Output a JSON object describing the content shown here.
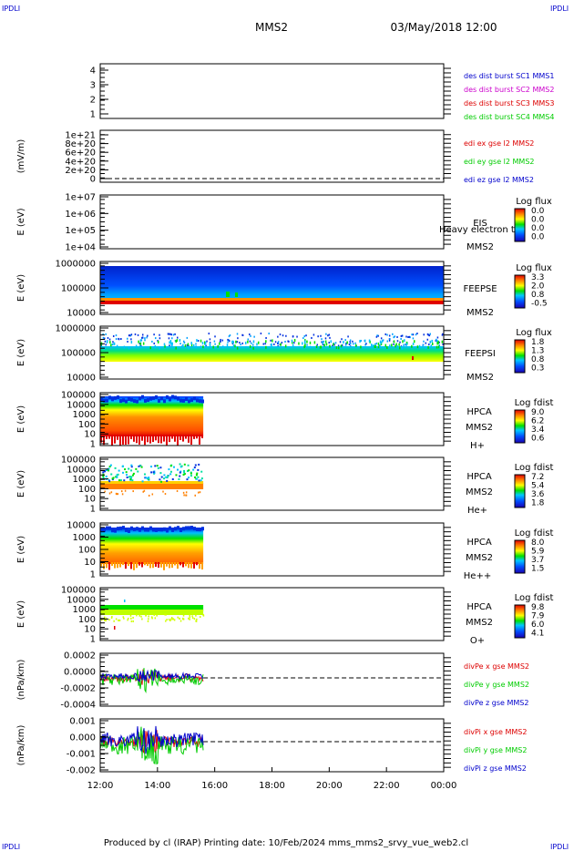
{
  "corner_label": "IPDLI",
  "header": {
    "spacecraft": "MMS2",
    "datetime": "03/May/2018 12:00"
  },
  "footer": "Produced by cl (IRAP)   Printing date: 10/Feb/2024   mms_mms2_srvy_vue_web2.cl",
  "colors": {
    "blue": "#0000cc",
    "magenta": "#cc00cc",
    "red": "#dd0000",
    "green": "#00cc00",
    "bg_blue": "#0033dd"
  },
  "chart_data": [
    {
      "type": "heatmap",
      "id": "p1",
      "ylabel": "",
      "yticks": [
        "4",
        "3",
        "2",
        "1"
      ],
      "legend": [
        {
          "text": "des dist burst SC1 MMS1",
          "color": "#0000cc"
        },
        {
          "text": "des dist burst SC2 MMS2",
          "color": "#cc00cc"
        },
        {
          "text": "des dist burst SC3 MMS3",
          "color": "#dd0000"
        },
        {
          "text": "des dist burst SC4 MMS4",
          "color": "#00cc00"
        }
      ]
    },
    {
      "type": "line",
      "id": "p2",
      "ylabel": "(mV/m)",
      "yticks": [
        "1e+21",
        "8e+20",
        "6e+20",
        "4e+20",
        "2e+20",
        "0"
      ],
      "legend": [
        {
          "text": "edi ex gse l2 MMS2",
          "color": "#dd0000"
        },
        {
          "text": "edi ey gse l2 MMS2",
          "color": "#00cc00"
        },
        {
          "text": "edi ez gse l2 MMS2",
          "color": "#0000cc"
        }
      ]
    },
    {
      "type": "heatmap",
      "id": "p3",
      "ylabel": "E (eV)",
      "yticks": [
        "1e+07",
        "1e+06",
        "1e+05",
        "1e+04"
      ],
      "instrument": [
        "EIS",
        "MMS2"
      ],
      "overlay_text": "Heavy electron to",
      "cbar_title": "Log flux",
      "cbar_ticks": [
        "0.0",
        "0.0",
        "0.0",
        "0.0"
      ]
    },
    {
      "type": "heatmap",
      "id": "p4",
      "ylabel": "E (eV)",
      "yticks": [
        "1000000",
        "100000",
        "10000"
      ],
      "instrument": [
        "FEEPSE",
        "MMS2"
      ],
      "cbar_title": "Log flux",
      "cbar_ticks": [
        "3.3",
        "2.0",
        "0.8",
        "-0.5"
      ]
    },
    {
      "type": "heatmap",
      "id": "p5",
      "ylabel": "E (eV)",
      "yticks": [
        "1000000",
        "100000",
        "10000"
      ],
      "instrument": [
        "FEEPSI",
        "MMS2"
      ],
      "cbar_title": "Log flux",
      "cbar_ticks": [
        "1.8",
        "1.3",
        "0.8",
        "0.3"
      ]
    },
    {
      "type": "heatmap",
      "id": "p6",
      "ylabel": "E (eV)",
      "yticks": [
        "100000",
        "10000",
        "1000",
        "100",
        "10",
        "1"
      ],
      "instrument": [
        "HPCA",
        "MMS2",
        "H+"
      ],
      "cbar_title": "Log fdist",
      "cbar_ticks": [
        "9.0",
        "6.2",
        "3.4",
        "0.6"
      ]
    },
    {
      "type": "heatmap",
      "id": "p7",
      "ylabel": "E (eV)",
      "yticks": [
        "100000",
        "10000",
        "1000",
        "100",
        "10",
        "1"
      ],
      "instrument": [
        "HPCA",
        "MMS2",
        "He+"
      ],
      "cbar_title": "Log fdist",
      "cbar_ticks": [
        "7.2",
        "5.4",
        "3.6",
        "1.8"
      ]
    },
    {
      "type": "heatmap",
      "id": "p8",
      "ylabel": "E (eV)",
      "yticks": [
        "10000",
        "1000",
        "100",
        "10",
        "1"
      ],
      "instrument": [
        "HPCA",
        "MMS2",
        "He++"
      ],
      "cbar_title": "Log fdist",
      "cbar_ticks": [
        "8.0",
        "5.9",
        "3.7",
        "1.5"
      ]
    },
    {
      "type": "heatmap",
      "id": "p9",
      "ylabel": "E (eV)",
      "yticks": [
        "100000",
        "10000",
        "1000",
        "100",
        "10",
        "1"
      ],
      "instrument": [
        "HPCA",
        "MMS2",
        "O+"
      ],
      "cbar_title": "Log fdist",
      "cbar_ticks": [
        "9.8",
        "7.9",
        "6.0",
        "4.1"
      ]
    },
    {
      "type": "line",
      "id": "p10",
      "ylabel": "(nPa/km)",
      "yticks": [
        "0.0002",
        "0.0000",
        "-0.0002",
        "-0.0004"
      ],
      "legend": [
        {
          "text": "divPe x gse MMS2",
          "color": "#dd0000"
        },
        {
          "text": "divPe y gse MMS2",
          "color": "#00cc00"
        },
        {
          "text": "divPe z gse MMS2",
          "color": "#0000cc"
        }
      ]
    },
    {
      "type": "line",
      "id": "p11",
      "ylabel": "(nPa/km)",
      "yticks": [
        "0.001",
        "0.000",
        "-0.001",
        "-0.002"
      ],
      "legend": [
        {
          "text": "divPi x gse MMS2",
          "color": "#dd0000"
        },
        {
          "text": "divPi y gse MMS2",
          "color": "#00cc00"
        },
        {
          "text": "divPi z gse MMS2",
          "color": "#0000cc"
        }
      ]
    }
  ],
  "x_axis": {
    "ticks": [
      "12:00",
      "14:00",
      "16:00",
      "18:00",
      "20:00",
      "22:00",
      "00:00"
    ],
    "range": [
      "12:00",
      "00:00"
    ]
  }
}
